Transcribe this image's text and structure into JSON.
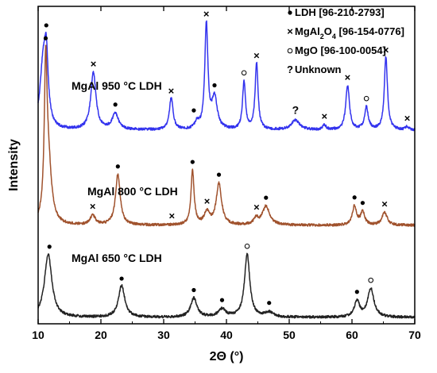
{
  "chart_data": {
    "type": "line",
    "xlabel": "2Θ (°)",
    "ylabel": "Intensity",
    "xlim": [
      10,
      70
    ],
    "x_ticks": [
      10,
      20,
      30,
      40,
      50,
      60,
      70
    ],
    "y_ticks_shown": false,
    "grid": false,
    "legend": {
      "placement": "top-right",
      "entries": [
        {
          "symbol": "filled-circle",
          "text": "LDH [96-210-2793]"
        },
        {
          "symbol": "x",
          "text": "MgAl",
          "sub": "2",
          "text2": "O",
          "sub2": "4",
          "text3": " [96-154-0776]"
        },
        {
          "symbol": "open-circle",
          "text": "MgO [96-100-0054]"
        },
        {
          "symbol": "?",
          "text": "Unknown"
        }
      ]
    },
    "series": [
      {
        "name": "MgAl 950 °C LDH",
        "color": "#3333ee",
        "baseline": 0.61,
        "noise": 0.004,
        "peaks": [
          [
            10.8,
            0.2,
            0.6
          ],
          [
            11.3,
            0.18,
            0.35
          ],
          [
            18.8,
            0.18,
            0.5
          ],
          [
            22.3,
            0.05,
            0.6
          ],
          [
            31.2,
            0.1,
            0.35
          ],
          [
            35.3,
            0.02,
            0.4
          ],
          [
            36.8,
            0.33,
            0.3
          ],
          [
            38.1,
            0.1,
            0.5
          ],
          [
            42.8,
            0.15,
            0.28
          ],
          [
            44.8,
            0.21,
            0.28
          ],
          [
            51.0,
            0.03,
            0.8
          ],
          [
            55.6,
            0.015,
            0.3
          ],
          [
            59.3,
            0.14,
            0.35
          ],
          [
            62.3,
            0.07,
            0.35
          ],
          [
            65.4,
            0.23,
            0.3
          ],
          [
            68.8,
            0.01,
            0.3
          ]
        ],
        "markers": [
          {
            "x": 11.3,
            "sym": "filled-circle"
          },
          {
            "x": 18.8,
            "sym": "x"
          },
          {
            "x": 22.3,
            "sym": "filled-circle"
          },
          {
            "x": 31.2,
            "sym": "x"
          },
          {
            "x": 34.8,
            "sym": "filled-circle"
          },
          {
            "x": 36.8,
            "sym": "x"
          },
          {
            "x": 38.1,
            "sym": "filled-circle"
          },
          {
            "x": 42.8,
            "sym": "open-circle"
          },
          {
            "x": 44.8,
            "sym": "x"
          },
          {
            "x": 51.0,
            "sym": "?"
          },
          {
            "x": 55.6,
            "sym": "x"
          },
          {
            "x": 59.3,
            "sym": "x"
          },
          {
            "x": 62.3,
            "sym": "open-circle"
          },
          {
            "x": 65.4,
            "sym": "x"
          },
          {
            "x": 68.8,
            "sym": "x"
          }
        ]
      },
      {
        "name": "MgAl 800 °C LDH",
        "color": "#a0522d",
        "baseline": 0.31,
        "noise": 0.004,
        "peaks": [
          [
            11.2,
            0.43,
            0.25
          ],
          [
            11.6,
            0.2,
            0.6
          ],
          [
            18.7,
            0.03,
            0.5
          ],
          [
            22.7,
            0.16,
            0.45
          ],
          [
            34.6,
            0.17,
            0.3
          ],
          [
            36.9,
            0.04,
            0.5
          ],
          [
            38.8,
            0.13,
            0.5
          ],
          [
            44.7,
            0.02,
            0.4
          ],
          [
            46.3,
            0.06,
            0.7
          ],
          [
            60.4,
            0.06,
            0.4
          ],
          [
            61.7,
            0.04,
            0.4
          ],
          [
            65.2,
            0.04,
            0.5
          ]
        ],
        "markers": [
          {
            "x": 11.2,
            "sym": "filled-circle"
          },
          {
            "x": 18.7,
            "sym": "x"
          },
          {
            "x": 22.7,
            "sym": "filled-circle"
          },
          {
            "x": 31.3,
            "sym": "x"
          },
          {
            "x": 34.6,
            "sym": "filled-circle"
          },
          {
            "x": 36.9,
            "sym": "x"
          },
          {
            "x": 38.8,
            "sym": "filled-circle"
          },
          {
            "x": 44.8,
            "sym": "x"
          },
          {
            "x": 46.3,
            "sym": "filled-circle"
          },
          {
            "x": 60.4,
            "sym": "filled-circle"
          },
          {
            "x": 61.7,
            "sym": "filled-circle"
          },
          {
            "x": 65.2,
            "sym": "x"
          }
        ]
      },
      {
        "name": "MgAl 650 °C LDH",
        "color": "#222222",
        "baseline": 0.02,
        "noise": 0.004,
        "peaks": [
          [
            11.6,
            0.2,
            0.7
          ],
          [
            23.3,
            0.1,
            0.6
          ],
          [
            34.8,
            0.06,
            0.6
          ],
          [
            39.3,
            0.025,
            0.7
          ],
          [
            43.3,
            0.2,
            0.5
          ],
          [
            46.8,
            0.015,
            0.8
          ],
          [
            60.8,
            0.05,
            0.5
          ],
          [
            63.0,
            0.09,
            0.6
          ]
        ],
        "markers": [
          {
            "x": 11.8,
            "sym": "filled-circle"
          },
          {
            "x": 23.3,
            "sym": "filled-circle"
          },
          {
            "x": 34.8,
            "sym": "filled-circle"
          },
          {
            "x": 39.3,
            "sym": "filled-circle"
          },
          {
            "x": 43.3,
            "sym": "open-circle"
          },
          {
            "x": 46.8,
            "sym": "filled-circle"
          },
          {
            "x": 60.8,
            "sym": "filled-circle"
          },
          {
            "x": 63.0,
            "sym": "open-circle"
          }
        ]
      }
    ]
  }
}
